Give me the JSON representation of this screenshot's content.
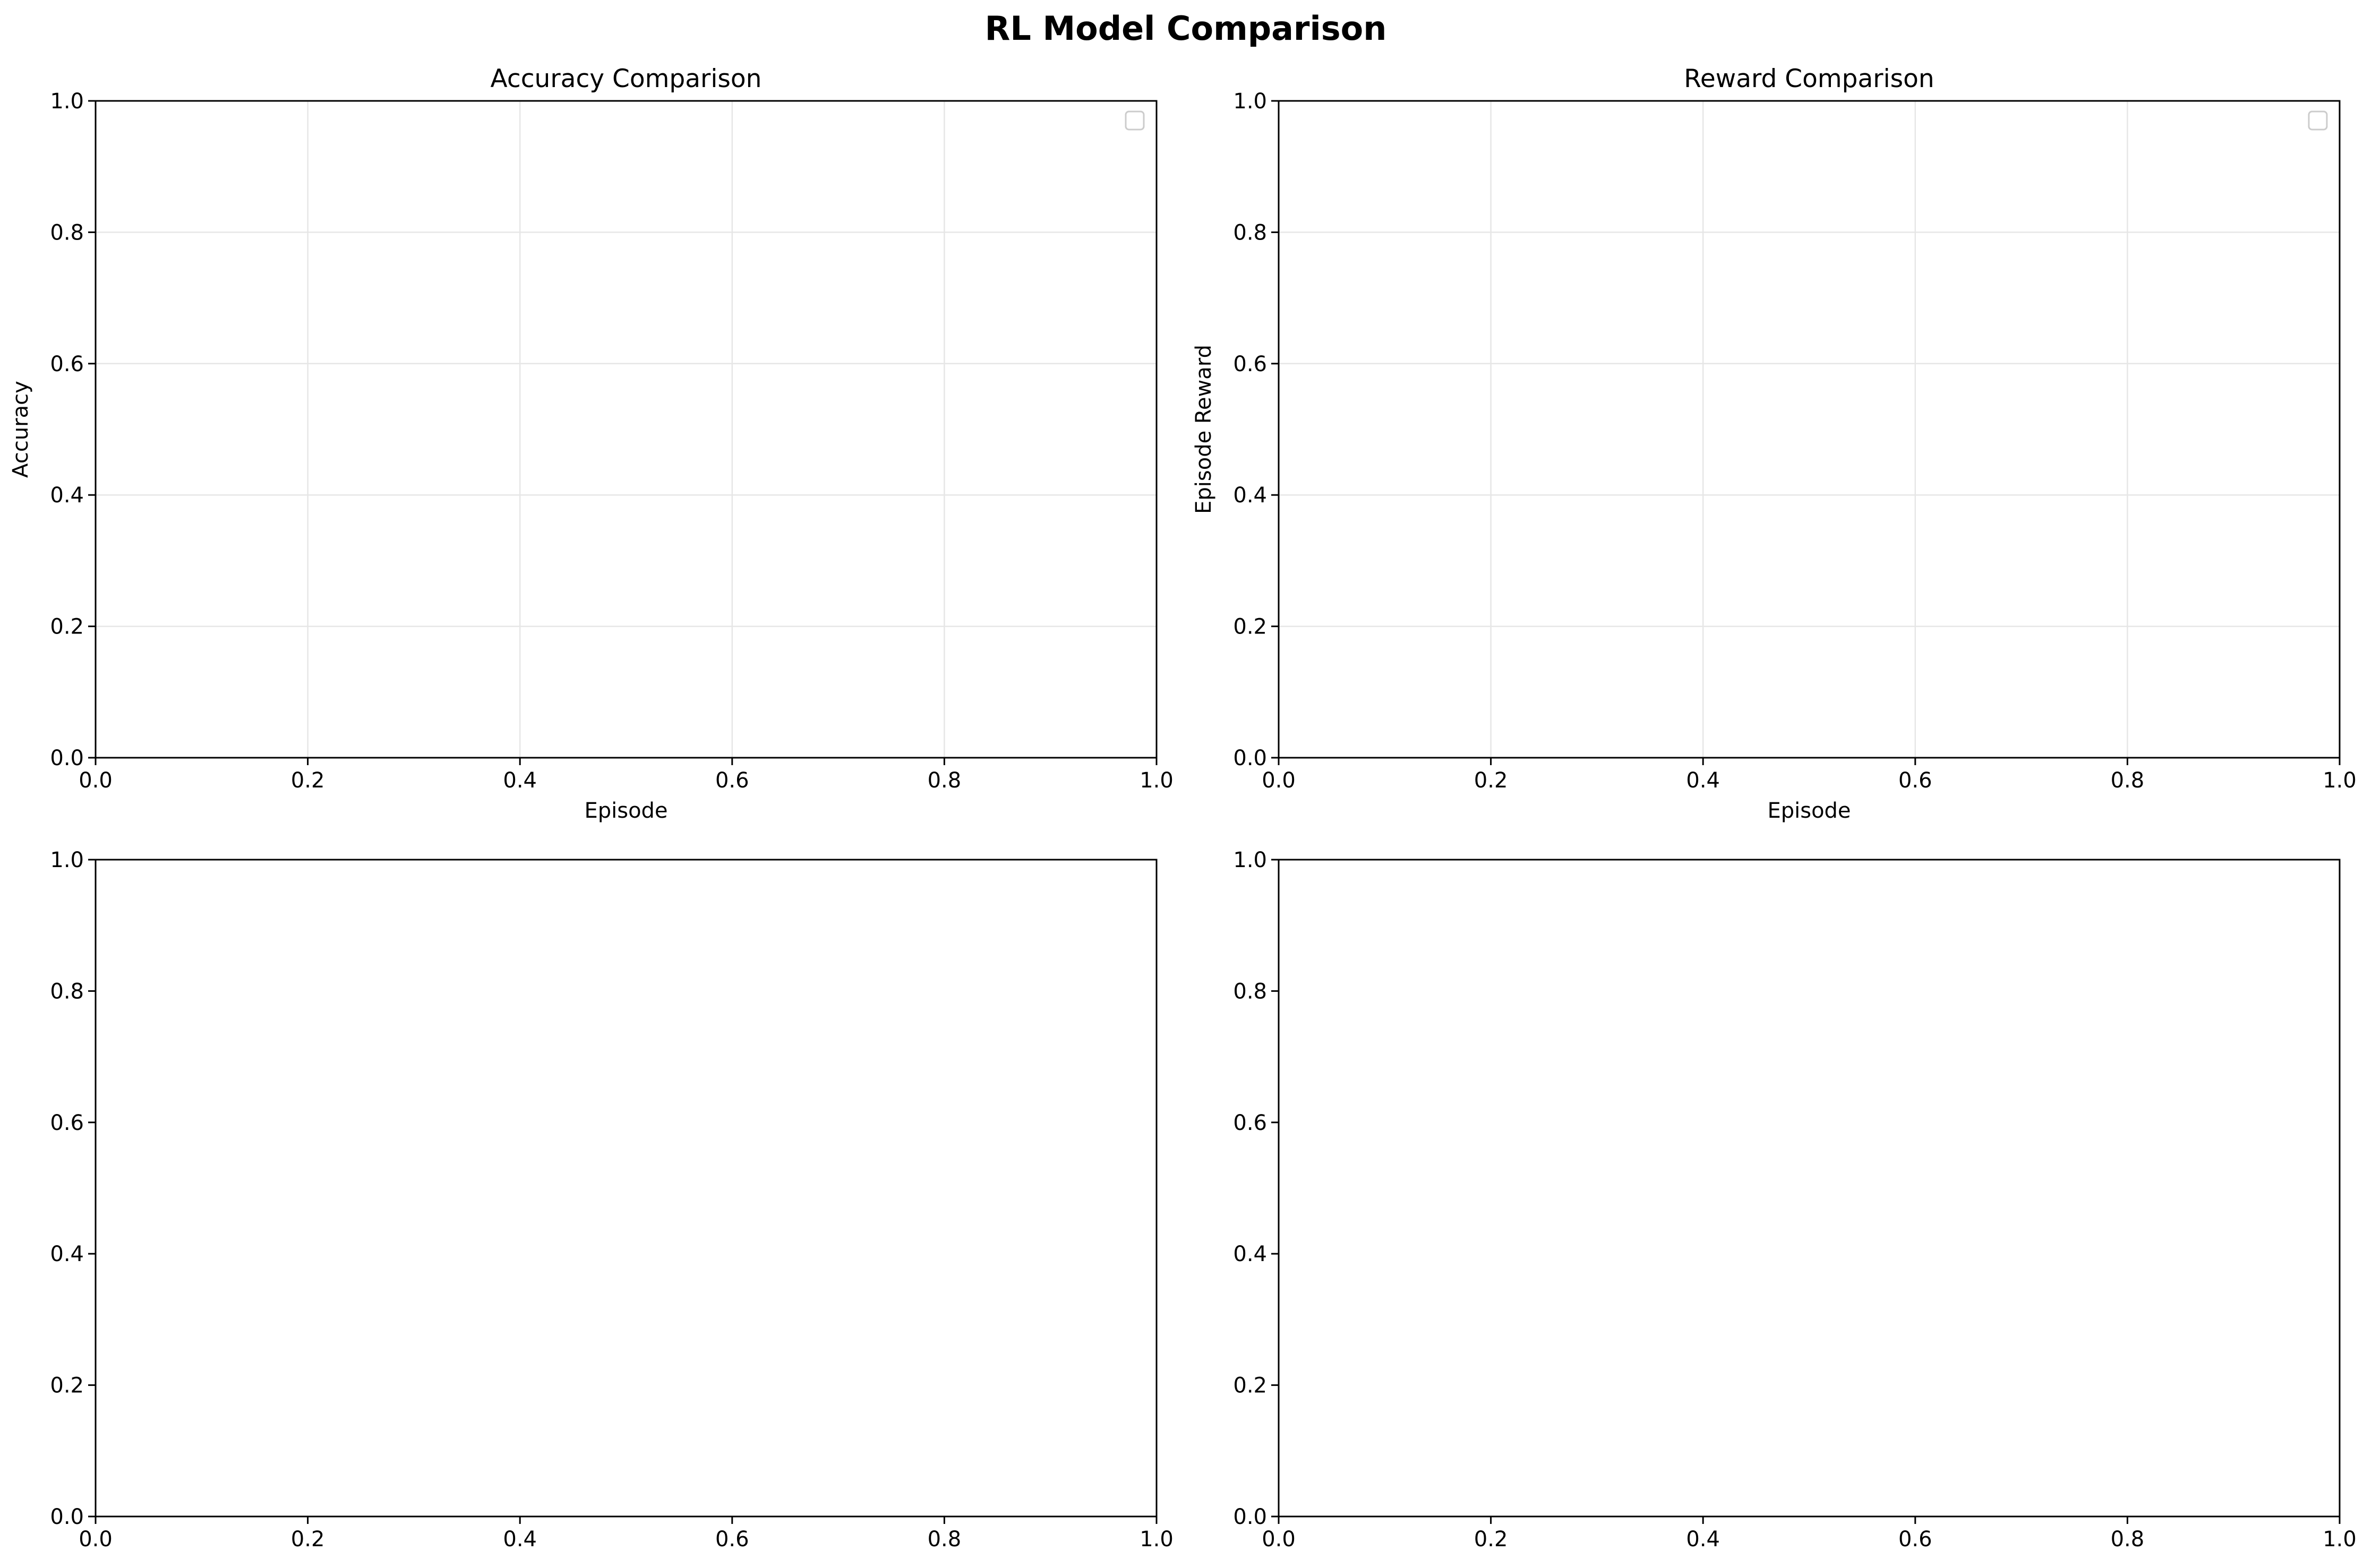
{
  "figure": {
    "title": "RL Model Comparison"
  },
  "colors": {
    "background": "#ffffff",
    "axes": "#000000",
    "grid": "#e6e6e6",
    "legend_border": "#cccccc"
  },
  "chart_data": [
    {
      "type": "line",
      "title": "Accuracy Comparison",
      "xlabel": "Episode",
      "ylabel": "Accuracy",
      "xlim": [
        0,
        1
      ],
      "ylim": [
        0,
        1
      ],
      "xticks": [
        "0.0",
        "0.2",
        "0.4",
        "0.6",
        "0.8",
        "1.0"
      ],
      "yticks": [
        "0.0",
        "0.2",
        "0.4",
        "0.6",
        "0.8",
        "1.0"
      ],
      "grid": true,
      "legend": "top-right",
      "series": []
    },
    {
      "type": "line",
      "title": "Reward Comparison",
      "xlabel": "Episode",
      "ylabel": "Episode Reward",
      "xlim": [
        0,
        1
      ],
      "ylim": [
        0,
        1
      ],
      "xticks": [
        "0.0",
        "0.2",
        "0.4",
        "0.6",
        "0.8",
        "1.0"
      ],
      "yticks": [
        "0.0",
        "0.2",
        "0.4",
        "0.6",
        "0.8",
        "1.0"
      ],
      "grid": true,
      "legend": "top-right",
      "series": []
    },
    {
      "type": "line",
      "title": "",
      "xlabel": "",
      "ylabel": "",
      "xlim": [
        0,
        1
      ],
      "ylim": [
        0,
        1
      ],
      "xticks": [
        "0.0",
        "0.2",
        "0.4",
        "0.6",
        "0.8",
        "1.0"
      ],
      "yticks": [
        "0.0",
        "0.2",
        "0.4",
        "0.6",
        "0.8",
        "1.0"
      ],
      "grid": false,
      "legend": "none",
      "series": []
    },
    {
      "type": "line",
      "title": "",
      "xlabel": "",
      "ylabel": "",
      "xlim": [
        0,
        1
      ],
      "ylim": [
        0,
        1
      ],
      "xticks": [
        "0.0",
        "0.2",
        "0.4",
        "0.6",
        "0.8",
        "1.0"
      ],
      "yticks": [
        "0.0",
        "0.2",
        "0.4",
        "0.6",
        "0.8",
        "1.0"
      ],
      "grid": false,
      "legend": "none",
      "series": []
    }
  ]
}
